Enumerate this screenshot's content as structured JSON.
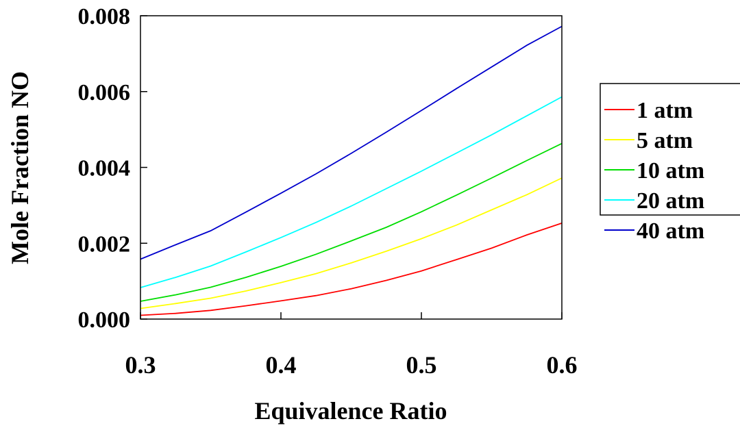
{
  "chart_data": {
    "type": "line",
    "title": "",
    "xlabel": "Equivalence Ratio",
    "ylabel": "Mole Fraction NO",
    "xlim": [
      0.3,
      0.6
    ],
    "ylim": [
      0.0,
      0.008
    ],
    "x_ticks": [
      "0.3",
      "0.4",
      "0.5",
      "0.6"
    ],
    "y_ticks": [
      "0.000",
      "0.002",
      "0.004",
      "0.006",
      "0.008"
    ],
    "grid": false,
    "legend_position": "right",
    "x": [
      0.3,
      0.325,
      0.35,
      0.375,
      0.4,
      0.425,
      0.45,
      0.475,
      0.5,
      0.525,
      0.55,
      0.575,
      0.6
    ],
    "series": [
      {
        "name": "1 atm",
        "color": "#ff0000",
        "values": [
          0.0001,
          0.00015,
          0.00023,
          0.00035,
          0.00048,
          0.00062,
          0.0008,
          0.00102,
          0.00127,
          0.00157,
          0.00187,
          0.00222,
          0.00253
        ]
      },
      {
        "name": "5 atm",
        "color": "#ffff00",
        "values": [
          0.00028,
          0.00041,
          0.00055,
          0.00074,
          0.00096,
          0.0012,
          0.00148,
          0.00179,
          0.00212,
          0.00248,
          0.00288,
          0.00328,
          0.00372
        ]
      },
      {
        "name": "10 atm",
        "color": "#00dd00",
        "values": [
          0.00047,
          0.00064,
          0.00084,
          0.0011,
          0.00139,
          0.00171,
          0.00206,
          0.00242,
          0.00283,
          0.00327,
          0.00372,
          0.00418,
          0.00463
        ]
      },
      {
        "name": "20 atm",
        "color": "#00ffff",
        "values": [
          0.00083,
          0.0011,
          0.0014,
          0.00177,
          0.00215,
          0.00255,
          0.00298,
          0.00344,
          0.0039,
          0.00438,
          0.00486,
          0.00536,
          0.00586
        ]
      },
      {
        "name": "40 atm",
        "color": "#0000cc",
        "values": [
          0.00158,
          0.00196,
          0.00233,
          0.00282,
          0.00332,
          0.00383,
          0.00437,
          0.00493,
          0.0055,
          0.00608,
          0.00665,
          0.00722,
          0.00772
        ]
      }
    ]
  }
}
